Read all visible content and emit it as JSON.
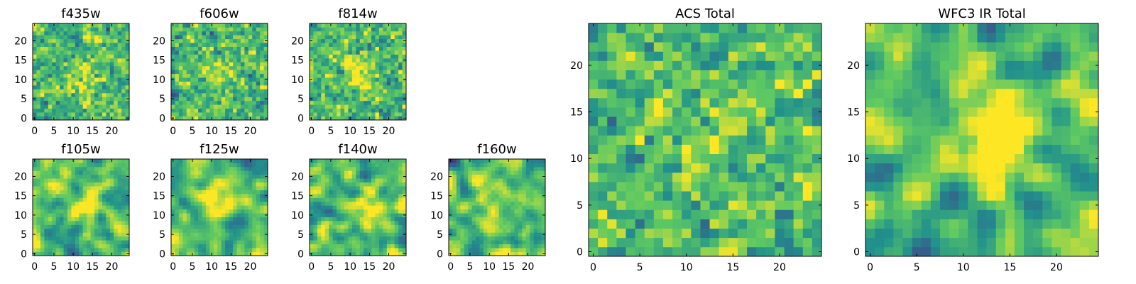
{
  "figure": {
    "colormap": "viridis",
    "colormap_stops": [
      "#440154",
      "#3b528b",
      "#21918c",
      "#5ec962",
      "#fde725"
    ],
    "background": "#ffffff",
    "axis_color": "#000000"
  },
  "chart_data": [
    {
      "type": "heatmap",
      "id": "f435w",
      "title": "f435w",
      "grid": [
        25,
        25
      ],
      "xlim": [
        -0.5,
        24.5
      ],
      "ylim": [
        -0.5,
        24.5
      ],
      "xticks": [
        0,
        5,
        10,
        15,
        20
      ],
      "yticks": [
        0,
        5,
        10,
        15,
        20
      ],
      "xtick_labels": [
        "0",
        "5",
        "10",
        "15",
        "20"
      ],
      "ytick_labels": [
        "0",
        "5",
        "10",
        "15",
        "20"
      ],
      "center": [
        12,
        11
      ],
      "smoothing": 0.25,
      "signal": 0.18,
      "seed": 11
    },
    {
      "type": "heatmap",
      "id": "f606w",
      "title": "f606w",
      "grid": [
        25,
        25
      ],
      "xlim": [
        -0.5,
        24.5
      ],
      "ylim": [
        -0.5,
        24.5
      ],
      "xticks": [
        0,
        5,
        10,
        15,
        20
      ],
      "yticks": [
        0,
        5,
        10,
        15,
        20
      ],
      "xtick_labels": [
        "0",
        "5",
        "10",
        "15",
        "20"
      ],
      "ytick_labels": [
        "0",
        "5",
        "10",
        "15",
        "20"
      ],
      "center": [
        12,
        12
      ],
      "smoothing": 0.2,
      "signal": 0.12,
      "seed": 23
    },
    {
      "type": "heatmap",
      "id": "f814w",
      "title": "f814w",
      "grid": [
        25,
        25
      ],
      "xlim": [
        -0.5,
        24.5
      ],
      "ylim": [
        -0.5,
        24.5
      ],
      "xticks": [
        0,
        5,
        10,
        15,
        20
      ],
      "yticks": [
        0,
        5,
        10,
        15,
        20
      ],
      "xtick_labels": [
        "0",
        "5",
        "10",
        "15",
        "20"
      ],
      "ytick_labels": [
        "0",
        "5",
        "10",
        "15",
        "20"
      ],
      "center": [
        12,
        12
      ],
      "smoothing": 0.25,
      "signal": 0.28,
      "seed": 37
    },
    {
      "type": "heatmap",
      "id": "f105w",
      "title": "f105w",
      "grid": [
        25,
        25
      ],
      "xlim": [
        -0.5,
        24.5
      ],
      "ylim": [
        -0.5,
        24.5
      ],
      "xticks": [
        0,
        5,
        10,
        15,
        20
      ],
      "yticks": [
        0,
        5,
        10,
        15,
        20
      ],
      "xtick_labels": [
        "0",
        "5",
        "10",
        "15",
        "20"
      ],
      "ytick_labels": [
        "0",
        "5",
        "10",
        "15",
        "20"
      ],
      "center": [
        13,
        13
      ],
      "smoothing": 0.65,
      "signal": 0.35,
      "seed": 41
    },
    {
      "type": "heatmap",
      "id": "f125w",
      "title": "f125w",
      "grid": [
        25,
        25
      ],
      "xlim": [
        -0.5,
        24.5
      ],
      "ylim": [
        -0.5,
        24.5
      ],
      "xticks": [
        0,
        5,
        10,
        15,
        20
      ],
      "yticks": [
        0,
        5,
        10,
        15,
        20
      ],
      "xtick_labels": [
        "0",
        "5",
        "10",
        "15",
        "20"
      ],
      "ytick_labels": [
        "0",
        "5",
        "10",
        "15",
        "20"
      ],
      "center": [
        12,
        12
      ],
      "smoothing": 0.7,
      "signal": 0.4,
      "seed": 53
    },
    {
      "type": "heatmap",
      "id": "f140w",
      "title": "f140w",
      "grid": [
        25,
        25
      ],
      "xlim": [
        -0.5,
        24.5
      ],
      "ylim": [
        -0.5,
        24.5
      ],
      "xticks": [
        0,
        5,
        10,
        15,
        20
      ],
      "yticks": [
        0,
        5,
        10,
        15,
        20
      ],
      "xtick_labels": [
        "0",
        "5",
        "10",
        "15",
        "20"
      ],
      "ytick_labels": [
        "0",
        "5",
        "10",
        "15",
        "20"
      ],
      "center": [
        14,
        11
      ],
      "smoothing": 0.7,
      "signal": 0.35,
      "seed": 67
    },
    {
      "type": "heatmap",
      "id": "f160w",
      "title": "f160w",
      "grid": [
        25,
        25
      ],
      "xlim": [
        -0.5,
        24.5
      ],
      "ylim": [
        -0.5,
        24.5
      ],
      "xticks": [
        0,
        5,
        10,
        15,
        20
      ],
      "yticks": [
        0,
        5,
        10,
        15,
        20
      ],
      "xtick_labels": [
        "0",
        "5",
        "10",
        "15",
        "20"
      ],
      "ytick_labels": [
        "0",
        "5",
        "10",
        "15",
        "20"
      ],
      "center": [
        10,
        13
      ],
      "smoothing": 0.65,
      "signal": 0.35,
      "seed": 79
    },
    {
      "type": "heatmap",
      "id": "acs_total",
      "title": "ACS Total",
      "grid": [
        25,
        25
      ],
      "xlim": [
        -0.5,
        24.5
      ],
      "ylim": [
        -0.5,
        24.5
      ],
      "xticks": [
        0,
        5,
        10,
        15,
        20
      ],
      "yticks": [
        0,
        5,
        10,
        15,
        20
      ],
      "xtick_labels": [
        "0",
        "5",
        "10",
        "15",
        "20"
      ],
      "ytick_labels": [
        "0",
        "5",
        "10",
        "15",
        "20"
      ],
      "center": [
        12,
        12
      ],
      "smoothing": 0.35,
      "signal": 0.22,
      "seed": 97
    },
    {
      "type": "heatmap",
      "id": "wfc3_ir_total",
      "title": "WFC3 IR Total",
      "grid": [
        25,
        25
      ],
      "xlim": [
        -0.5,
        24.5
      ],
      "ylim": [
        -0.5,
        24.5
      ],
      "xticks": [
        0,
        5,
        10,
        15,
        20
      ],
      "yticks": [
        0,
        5,
        10,
        15,
        20
      ],
      "xtick_labels": [
        "0",
        "5",
        "10",
        "15",
        "20"
      ],
      "ytick_labels": [
        "0",
        "5",
        "10",
        "15",
        "20"
      ],
      "center": [
        13,
        12
      ],
      "smoothing": 0.7,
      "signal": 0.55,
      "seed": 113
    }
  ]
}
